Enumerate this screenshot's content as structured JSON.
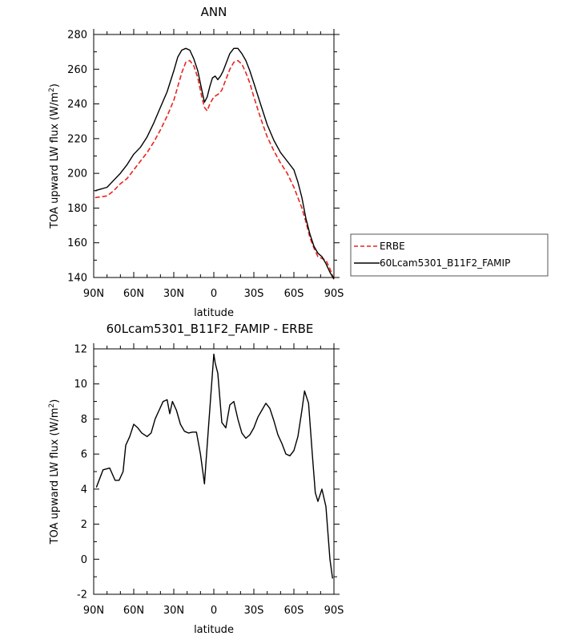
{
  "chart_data": [
    {
      "type": "line",
      "title": "ANN",
      "xlabel": "latitude",
      "ylabel_base": "TOA upward LW flux (W/m",
      "ylabel_sup": "2",
      "ylabel_close": ")",
      "ylim": [
        140,
        280
      ],
      "xlim": [
        -90,
        90
      ],
      "yticks": [
        140,
        160,
        180,
        200,
        220,
        240,
        260,
        280
      ],
      "yticks_minor": [
        150,
        170,
        190,
        210,
        230,
        250,
        270
      ],
      "xticks": [
        -90,
        -60,
        -30,
        0,
        30,
        60,
        90
      ],
      "xticklabels": [
        "90N",
        "60N",
        "30N",
        "0",
        "30S",
        "60S",
        "90S"
      ],
      "legend_position": "right",
      "legend": [
        "ERBE",
        "60Lcam5301_B11F2_FAMIP"
      ],
      "series": [
        {
          "name": "ERBE",
          "color": "#e8251f",
          "dash": "dashed",
          "x": [
            -89,
            -80,
            -75,
            -70,
            -65,
            -60,
            -55,
            -50,
            -45,
            -40,
            -35,
            -30,
            -27,
            -24,
            -21,
            -18,
            -15,
            -12,
            -9,
            -7,
            -5,
            -3,
            0,
            2,
            4,
            6,
            9,
            12,
            15,
            18,
            21,
            24,
            27,
            30,
            35,
            40,
            45,
            50,
            55,
            60,
            63,
            66,
            69,
            72,
            75,
            78,
            81,
            84,
            87,
            90
          ],
          "y": [
            186,
            187,
            190,
            194,
            197,
            202,
            207,
            212,
            218,
            225,
            233,
            242,
            250,
            258,
            264,
            265,
            262,
            255,
            244,
            238,
            236,
            240,
            244,
            245,
            246,
            248,
            254,
            260,
            264,
            265,
            263,
            258,
            252,
            244,
            232,
            221,
            213,
            206,
            200,
            192,
            186,
            180,
            172,
            163,
            157,
            152,
            151,
            150,
            145,
            139
          ]
        },
        {
          "name": "60Lcam5301_B11F2_FAMIP",
          "color": "#000000",
          "dash": "solid",
          "x": [
            -89,
            -80,
            -75,
            -70,
            -65,
            -60,
            -55,
            -50,
            -45,
            -40,
            -35,
            -30,
            -27,
            -24,
            -21,
            -18,
            -15,
            -12,
            -9,
            -7,
            -5,
            -3,
            -1,
            1,
            3,
            5,
            7,
            9,
            12,
            15,
            18,
            21,
            24,
            27,
            30,
            35,
            40,
            45,
            50,
            55,
            60,
            63,
            66,
            69,
            72,
            75,
            78,
            81,
            84,
            87,
            90
          ],
          "y": [
            190,
            192,
            196,
            200,
            205,
            211,
            215,
            221,
            229,
            238,
            247,
            259,
            267,
            271,
            272,
            271,
            266,
            259,
            248,
            241,
            244,
            250,
            255,
            256,
            254,
            256,
            259,
            263,
            269,
            272,
            272,
            269,
            265,
            259,
            252,
            240,
            228,
            219,
            212,
            207,
            202,
            195,
            186,
            174,
            165,
            158,
            154,
            152,
            148,
            143,
            139
          ]
        }
      ]
    },
    {
      "type": "line",
      "title": "60Lcam5301_B11F2_FAMIP - ERBE",
      "xlabel": "latitude",
      "ylabel_base": "TOA upward LW flux (W/m",
      "ylabel_sup": "2",
      "ylabel_close": ")",
      "ylim": [
        -2,
        12
      ],
      "xlim": [
        -90,
        90
      ],
      "yticks": [
        -2,
        0,
        2,
        4,
        6,
        8,
        10,
        12
      ],
      "yticks_minor": [
        -1,
        1,
        3,
        5,
        7,
        9,
        11
      ],
      "xticks": [
        -90,
        -60,
        -30,
        0,
        30,
        60,
        90
      ],
      "xticklabels": [
        "90N",
        "60N",
        "30N",
        "0",
        "30S",
        "60S",
        "90S"
      ],
      "series": [
        {
          "color": "#000000",
          "dash": "solid",
          "x": [
            -88,
            -83,
            -78,
            -74,
            -71,
            -68,
            -66,
            -63,
            -60,
            -57,
            -54,
            -50,
            -47,
            -44,
            -41,
            -38,
            -35,
            -33,
            -31,
            -28,
            -25,
            -22,
            -19,
            -16,
            -13,
            -10,
            -7,
            -4,
            0,
            1,
            3,
            6,
            9,
            12,
            15,
            18,
            21,
            24,
            27,
            30,
            33,
            36,
            39,
            42,
            45,
            48,
            51,
            54,
            57,
            60,
            63,
            66,
            68,
            71,
            74,
            76,
            78,
            81,
            84,
            87,
            89
          ],
          "y": [
            4.1,
            5.1,
            5.2,
            4.5,
            4.5,
            5.0,
            6.5,
            7.0,
            7.7,
            7.5,
            7.2,
            7.0,
            7.2,
            8.0,
            8.5,
            9.0,
            9.1,
            8.3,
            9.0,
            8.5,
            7.7,
            7.3,
            7.2,
            7.25,
            7.25,
            6.0,
            4.3,
            7.5,
            11.7,
            11.2,
            10.6,
            7.8,
            7.5,
            8.8,
            9.0,
            8.0,
            7.2,
            6.9,
            7.1,
            7.5,
            8.1,
            8.5,
            8.9,
            8.6,
            7.9,
            7.1,
            6.6,
            6.0,
            5.9,
            6.2,
            7.0,
            8.5,
            9.6,
            8.9,
            5.8,
            3.8,
            3.3,
            4.0,
            3.0,
            0.0,
            -1.1
          ]
        }
      ]
    }
  ]
}
